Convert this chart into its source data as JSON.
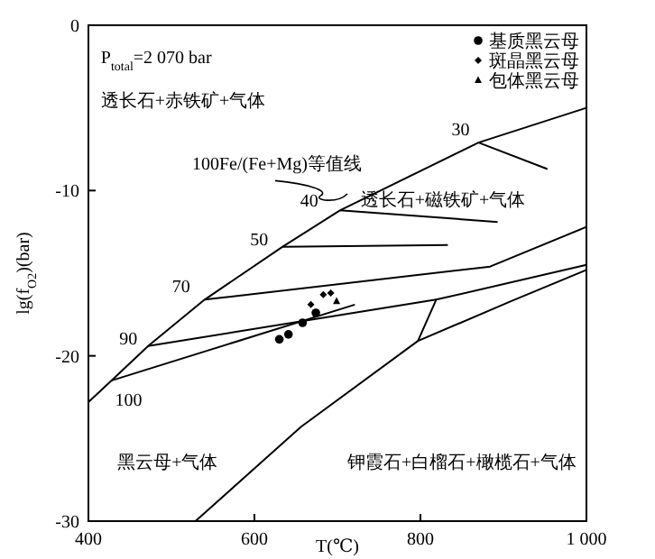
{
  "chart_data": {
    "type": "line",
    "xlabel": "T(℃)",
    "ylabel": "lg(f$_{O2}$)(bar)",
    "xlim": [
      400,
      1000
    ],
    "ylim": [
      -30,
      0
    ],
    "xticks": [
      400,
      600,
      800,
      {
        "value": 1000,
        "label": "1 000"
      }
    ],
    "yticks": [
      0,
      -10,
      -20,
      -30
    ],
    "grid": false,
    "legend": "top right",
    "series": [
      {
        "color": "#000000",
        "x": [
          400,
          427.6,
          472,
          540,
          634,
          703,
          870,
          1000
        ],
        "values": [
          -22.8,
          -21.5,
          -19.4,
          -16.6,
          -13.4,
          -11.2,
          -7.1,
          -5.0
        ]
      },
      {
        "color": "#000000",
        "x": [
          870,
          953
        ],
        "values": [
          -7.1,
          -8.7
        ]
      },
      {
        "color": "#000000",
        "x": [
          703,
          893
        ],
        "values": [
          -11.2,
          -11.9
        ]
      },
      {
        "color": "#000000",
        "x": [
          634,
          833
        ],
        "values": [
          -13.4,
          -13.3
        ]
      },
      {
        "color": "#000000",
        "x": [
          540,
          884,
          1000
        ],
        "values": [
          -16.6,
          -14.6,
          -12.2
        ]
      },
      {
        "color": "#000000",
        "x": [
          472,
          819
        ],
        "values": [
          -19.4,
          -16.6
        ]
      },
      {
        "color": "#000000",
        "x": [
          797,
          819,
          1000
        ],
        "values": [
          -19.1,
          -16.6,
          -14.5
        ]
      },
      {
        "color": "#000000",
        "x": [
          427.6,
          721
        ],
        "values": [
          -21.5,
          -16.9
        ]
      },
      {
        "color": "#000000",
        "x": [
          529,
          656,
          797,
          909,
          1000
        ],
        "values": [
          -30,
          -24.3,
          -19.1,
          -16.7,
          -14.8
        ]
      },
      {
        "type": "scatter",
        "name": "基质黑云母",
        "color": "#000000",
        "marker": "circle",
        "x": [
          630,
          641,
          658,
          674
        ],
        "values": [
          -19.0,
          -18.7,
          -18.0,
          -17.4
        ]
      },
      {
        "type": "scatter",
        "name": "斑晶黑云母",
        "color": "#000000",
        "marker": "diamond",
        "x": [
          668,
          683,
          692
        ],
        "values": [
          -16.9,
          -16.3,
          -16.2
        ]
      },
      {
        "type": "scatter",
        "name": "包体黑云母",
        "color": "#000000",
        "marker": "triangle",
        "x": [
          699
        ],
        "values": [
          -16.7
        ]
      }
    ],
    "annotations": [
      "P$_{total}$=2 070 bar",
      "透长石+赤铁矿+气体",
      "100Fe/(Fe+Mg)等值线",
      "透长石+磁铁矿+气体",
      "黑云母+气体",
      "钾霞石+白榴石+橄榄石+气体",
      {
        "text": "30",
        "x": 870,
        "y": -7.1
      },
      {
        "text": "40",
        "x": 703,
        "y": -11.2
      },
      {
        "text": "50",
        "x": 634,
        "y": -13.4
      },
      {
        "text": "70",
        "x": 540,
        "y": -16.6
      },
      {
        "text": "90",
        "x": 472,
        "y": -19.4
      },
      {
        "text": "100",
        "x": 427.6,
        "y": -21.5
      }
    ]
  }
}
